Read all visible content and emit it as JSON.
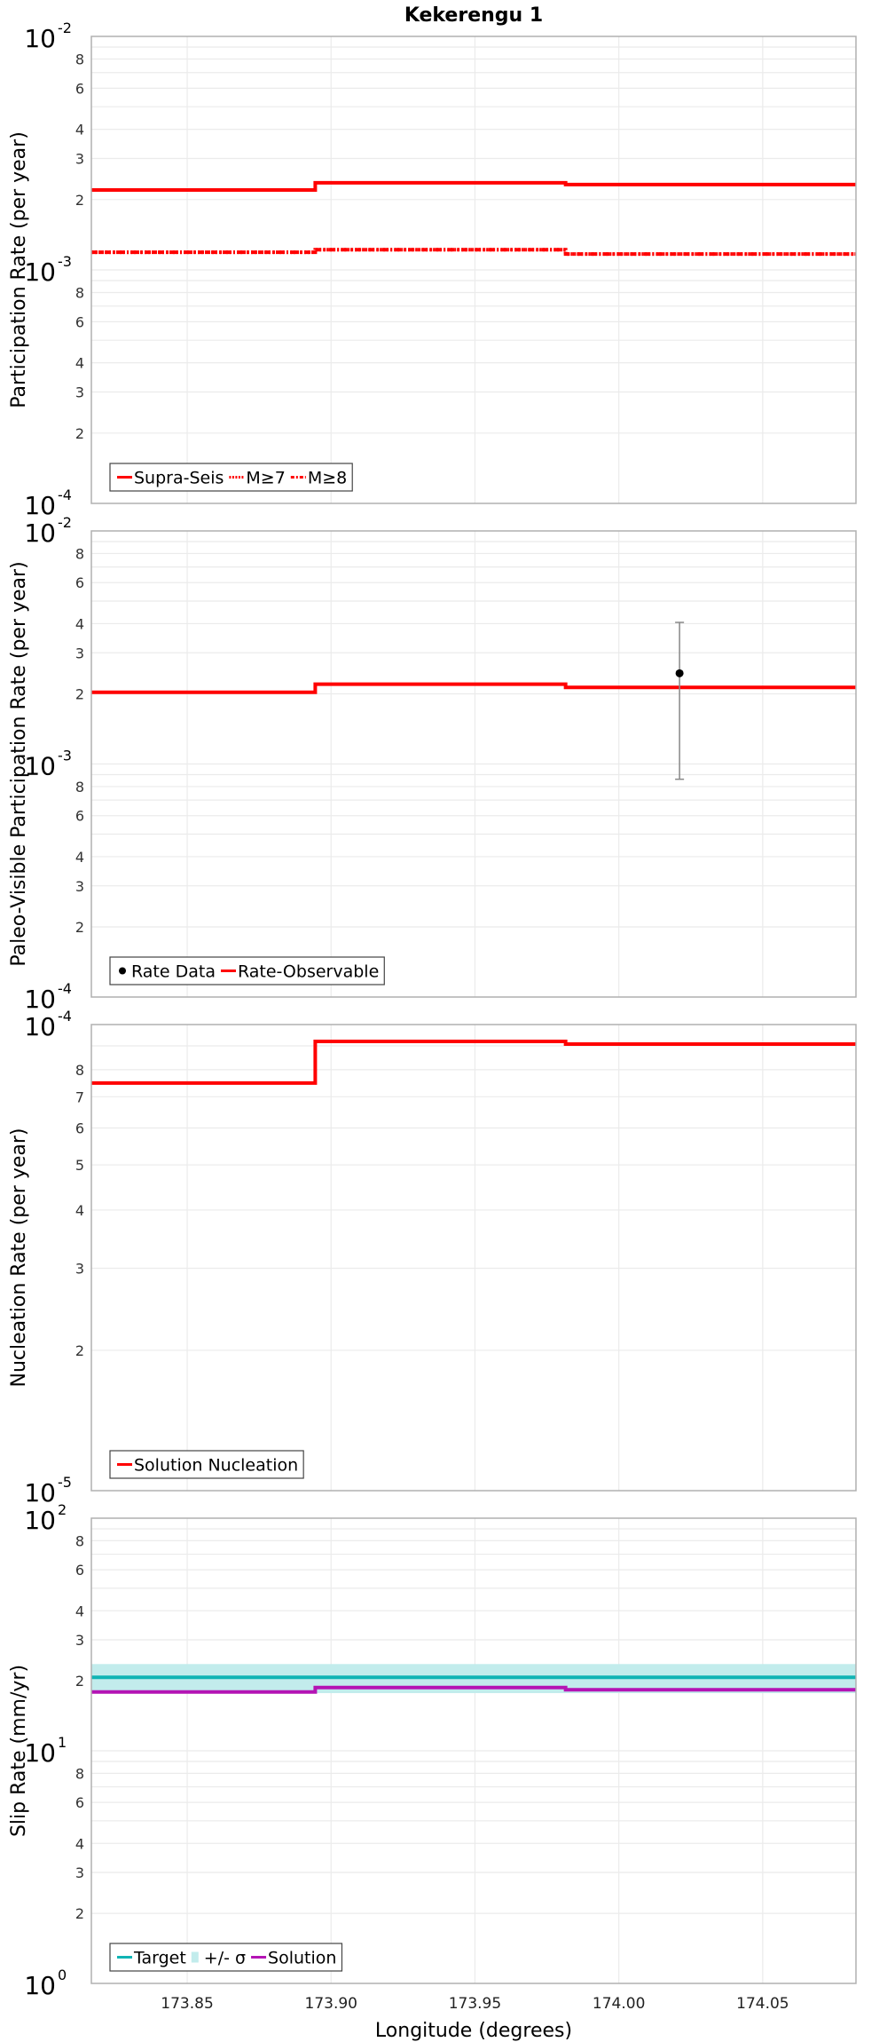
{
  "chart_data": {
    "type": "line",
    "title": "Kekerengu 1",
    "xlabel": "Longitude (degrees)",
    "xlim": [
      173.8167,
      174.0824
    ],
    "xticks": [
      173.85,
      173.9,
      173.95,
      174.0,
      174.05
    ],
    "xtick_labels": [
      "173.85",
      "173.90",
      "173.95",
      "174.00",
      "174.05"
    ],
    "segment_breaks": [
      173.8167,
      173.8945,
      173.9815,
      174.0824
    ],
    "grid": true,
    "panels": [
      {
        "id": "participation",
        "ylabel": "Participation Rate (per year)",
        "yscale": "log",
        "ylim_exp": [
          -4,
          -2
        ],
        "legend": [
          {
            "label": "Supra-Seis",
            "style": "solid",
            "color": "#ff0000"
          },
          {
            "label": "M≥7",
            "style": "dotted",
            "color": "#ff0000"
          },
          {
            "label": "M≥8",
            "style": "dashdot",
            "color": "#ff0000"
          }
        ],
        "series": [
          {
            "name": "Supra-Seis",
            "style": "solid",
            "color": "#ff0000",
            "values": [
              0.0022,
              0.00236,
              0.00232
            ]
          },
          {
            "name": "M≥7",
            "style": "dotted",
            "color": "#ff0000",
            "values": [
              0.00119,
              0.00122,
              0.00117
            ]
          },
          {
            "name": "M≥8",
            "style": "dashdot",
            "color": "#ff0000",
            "values": [
              0.00119,
              0.00122,
              0.00117
            ]
          }
        ]
      },
      {
        "id": "paleo",
        "ylabel": "Paleo-Visible Participation Rate (per year)",
        "yscale": "log",
        "ylim_exp": [
          -4,
          -2
        ],
        "legend": [
          {
            "label": "Rate Data",
            "style": "dot",
            "color": "#000000"
          },
          {
            "label": "Rate-Observable",
            "style": "solid",
            "color": "#ff0000"
          }
        ],
        "series": [
          {
            "name": "Rate-Observable",
            "style": "solid",
            "color": "#ff0000",
            "values": [
              0.00203,
              0.0022,
              0.00213
            ]
          }
        ],
        "points": [
          {
            "name": "Rate Data",
            "x": 174.0211,
            "y": 0.00245,
            "y_low": 0.00086,
            "y_high": 0.00405,
            "color": "#000000"
          }
        ]
      },
      {
        "id": "nucleation",
        "ylabel": "Nucleation Rate (per year)",
        "yscale": "log",
        "ylim_exp": [
          -5,
          -4
        ],
        "legend": [
          {
            "label": "Solution Nucleation",
            "style": "solid",
            "color": "#ff0000"
          }
        ],
        "series": [
          {
            "name": "Solution Nucleation",
            "style": "solid",
            "color": "#ff0000",
            "values": [
              7.49e-05,
              9.2e-05,
              9.08e-05
            ]
          }
        ]
      },
      {
        "id": "slip",
        "ylabel": "Slip Rate (mm/yr)",
        "yscale": "log",
        "ylim_exp": [
          0,
          2
        ],
        "legend": [
          {
            "label": "Target",
            "style": "solid",
            "color": "#10b4b4"
          },
          {
            "label": "+/- σ",
            "style": "band",
            "color": "#c2ecec"
          },
          {
            "label": "Solution",
            "style": "solid",
            "color": "#b414b4"
          }
        ],
        "band": {
          "name": "+/- σ",
          "low": 17.7,
          "high": 23.6,
          "color": "#c2ecec"
        },
        "series": [
          {
            "name": "Target",
            "style": "solid",
            "color": "#10b4b4",
            "values": [
              20.7,
              20.7,
              20.7
            ]
          },
          {
            "name": "Solution",
            "style": "solid",
            "color": "#b414b4",
            "values": [
              17.9,
              18.7,
              18.3
            ]
          }
        ]
      }
    ]
  }
}
